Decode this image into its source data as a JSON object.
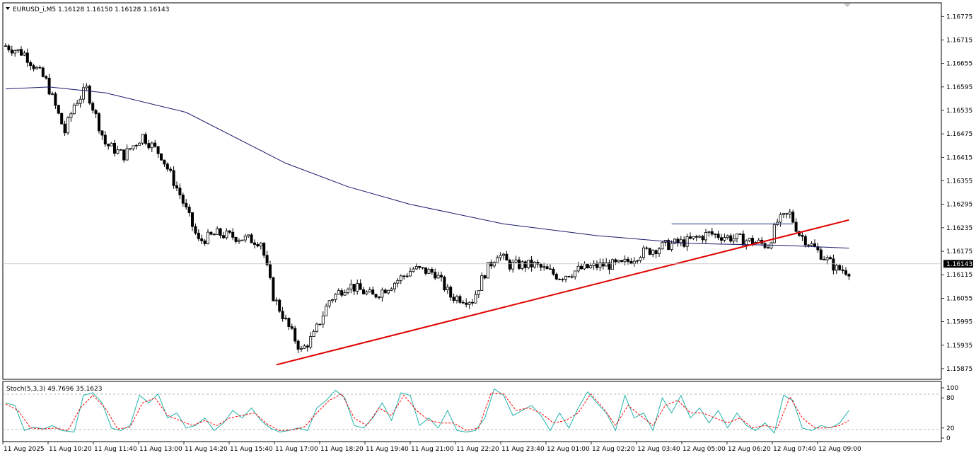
{
  "window": {
    "symbol_header": "EURUSD_i,M5  1.16128 1.16150 1.16128 1.16143",
    "current_price_label": "1.16143"
  },
  "chart_data": [
    {
      "type": "candlestick",
      "title": "EURUSD_i,M5",
      "ohlc_header": {
        "open": 1.16128,
        "high": 1.1615,
        "low": 1.16128,
        "close": 1.16143
      },
      "y_ticks": [
        "1.16775",
        "1.16715",
        "1.16655",
        "1.16595",
        "1.16535",
        "1.16475",
        "1.16415",
        "1.16355",
        "1.16295",
        "1.16235",
        "1.16175",
        "1.16115",
        "1.16055",
        "1.15995",
        "1.15935",
        "1.15875"
      ],
      "ylim": [
        1.15855,
        1.1679
      ],
      "current_price": 1.16143,
      "x_ticks": [
        "11 Aug 2025",
        "11 Aug 10:20",
        "11 Aug 11:40",
        "11 Aug 13:00",
        "11 Aug 14:20",
        "11 Aug 15:40",
        "11 Aug 17:00",
        "11 Aug 18:20",
        "11 Aug 19:40",
        "11 Aug 21:00",
        "11 Aug 22:20",
        "11 Aug 23:40",
        "12 Aug 01:00",
        "12 Aug 02:20",
        "12 Aug 03:40",
        "12 Aug 05:00",
        "12 Aug 06:20",
        "12 Aug 07:40",
        "12 Aug 09:00"
      ],
      "close_path": [
        [
          0,
          1.167
        ],
        [
          6,
          1.1668
        ],
        [
          13,
          1.1661
        ],
        [
          19,
          1.1648
        ],
        [
          22,
          1.1655
        ],
        [
          26,
          1.1659
        ],
        [
          32,
          1.1645
        ],
        [
          38,
          1.1642
        ],
        [
          44,
          1.1647
        ],
        [
          50,
          1.1642
        ],
        [
          56,
          1.1632
        ],
        [
          62,
          1.162
        ],
        [
          68,
          1.1622
        ],
        [
          75,
          1.1621
        ],
        [
          82,
          1.162
        ],
        [
          86,
          1.1606
        ],
        [
          91,
          1.1598
        ],
        [
          95,
          1.1592
        ],
        [
          99,
          1.1596
        ],
        [
          104,
          1.1605
        ],
        [
          110,
          1.1609
        ],
        [
          118,
          1.1606
        ],
        [
          124,
          1.1609
        ],
        [
          131,
          1.1613
        ],
        [
          138,
          1.1612
        ],
        [
          143,
          1.1606
        ],
        [
          150,
          1.1605
        ],
        [
          154,
          1.1612
        ],
        [
          158,
          1.1617
        ],
        [
          162,
          1.1614
        ],
        [
          170,
          1.1614
        ],
        [
          178,
          1.1611
        ],
        [
          185,
          1.1613
        ],
        [
          192,
          1.1614
        ],
        [
          198,
          1.1614
        ],
        [
          204,
          1.1617
        ],
        [
          212,
          1.1619
        ],
        [
          219,
          1.162
        ],
        [
          226,
          1.1622
        ],
        [
          233,
          1.1621
        ],
        [
          240,
          1.162
        ],
        [
          245,
          1.1619
        ],
        [
          248,
          1.1625
        ],
        [
          252,
          1.1627
        ],
        [
          255,
          1.1622
        ],
        [
          259,
          1.1619
        ],
        [
          263,
          1.1616
        ],
        [
          267,
          1.1613
        ],
        [
          271,
          1.16125
        ]
      ],
      "moving_average": [
        [
          0,
          1.1659
        ],
        [
          14,
          1.16595
        ],
        [
          32,
          1.1658
        ],
        [
          58,
          1.1653
        ],
        [
          90,
          1.164
        ],
        [
          110,
          1.1634
        ],
        [
          130,
          1.16295
        ],
        [
          160,
          1.16245
        ],
        [
          190,
          1.16215
        ],
        [
          220,
          1.16195
        ],
        [
          250,
          1.1619
        ],
        [
          271,
          1.16183
        ]
      ],
      "support_trendline": [
        [
          87,
          1.15885
        ],
        [
          271,
          1.16255
        ]
      ],
      "resistance_line": [
        [
          214,
          1.16245
        ],
        [
          253,
          1.16245
        ]
      ]
    },
    {
      "type": "line",
      "title": "Stoch(5,3,3) 49.7696 35.1623",
      "y_ticks": [
        "100",
        "80",
        "20",
        "0"
      ],
      "levels": [
        80,
        20
      ],
      "ylim": [
        0,
        100
      ],
      "series": [
        {
          "name": "main",
          "color": "#20B2AA",
          "points": [
            [
              0,
              70
            ],
            [
              3,
              65
            ],
            [
              6,
              15
            ],
            [
              9,
              22
            ],
            [
              12,
              18
            ],
            [
              15,
              25
            ],
            [
              18,
              15
            ],
            [
              22,
              12
            ],
            [
              25,
              85
            ],
            [
              28,
              90
            ],
            [
              31,
              70
            ],
            [
              34,
              20
            ],
            [
              37,
              15
            ],
            [
              40,
              25
            ],
            [
              43,
              85
            ],
            [
              46,
              70
            ],
            [
              49,
              88
            ],
            [
              52,
              40
            ],
            [
              55,
              50
            ],
            [
              58,
              20
            ],
            [
              61,
              25
            ],
            [
              64,
              40
            ],
            [
              67,
              15
            ],
            [
              70,
              30
            ],
            [
              73,
              55
            ],
            [
              76,
              40
            ],
            [
              79,
              60
            ],
            [
              82,
              35
            ],
            [
              85,
              20
            ],
            [
              88,
              12
            ],
            [
              91,
              15
            ],
            [
              94,
              20
            ],
            [
              97,
              15
            ],
            [
              100,
              60
            ],
            [
              103,
              75
            ],
            [
              106,
              95
            ],
            [
              109,
              80
            ],
            [
              112,
              25
            ],
            [
              115,
              20
            ],
            [
              118,
              40
            ],
            [
              121,
              70
            ],
            [
              124,
              35
            ],
            [
              127,
              90
            ],
            [
              130,
              85
            ],
            [
              133,
              25
            ],
            [
              136,
              40
            ],
            [
              139,
              20
            ],
            [
              142,
              55
            ],
            [
              145,
              15
            ],
            [
              148,
              12
            ],
            [
              151,
              15
            ],
            [
              154,
              40
            ],
            [
              157,
              98
            ],
            [
              160,
              85
            ],
            [
              163,
              45
            ],
            [
              166,
              55
            ],
            [
              169,
              65
            ],
            [
              172,
              45
            ],
            [
              175,
              15
            ],
            [
              178,
              50
            ],
            [
              181,
              20
            ],
            [
              184,
              60
            ],
            [
              187,
              92
            ],
            [
              190,
              70
            ],
            [
              193,
              50
            ],
            [
              196,
              15
            ],
            [
              199,
              85
            ],
            [
              202,
              40
            ],
            [
              205,
              50
            ],
            [
              208,
              15
            ],
            [
              211,
              80
            ],
            [
              214,
              50
            ],
            [
              217,
              85
            ],
            [
              220,
              40
            ],
            [
              223,
              60
            ],
            [
              226,
              30
            ],
            [
              229,
              55
            ],
            [
              232,
              20
            ],
            [
              235,
              50
            ],
            [
              238,
              25
            ],
            [
              241,
              15
            ],
            [
              244,
              30
            ],
            [
              247,
              10
            ],
            [
              250,
              85
            ],
            [
              253,
              75
            ],
            [
              256,
              20
            ],
            [
              259,
              15
            ],
            [
              262,
              25
            ],
            [
              265,
              20
            ],
            [
              268,
              30
            ],
            [
              271,
              55
            ]
          ]
        },
        {
          "name": "signal",
          "color": "#FF0000",
          "points": [
            [
              0,
              68
            ],
            [
              4,
              55
            ],
            [
              8,
              20
            ],
            [
              12,
              18
            ],
            [
              16,
              20
            ],
            [
              20,
              15
            ],
            [
              24,
              60
            ],
            [
              28,
              85
            ],
            [
              32,
              60
            ],
            [
              36,
              18
            ],
            [
              40,
              22
            ],
            [
              44,
              70
            ],
            [
              48,
              80
            ],
            [
              52,
              45
            ],
            [
              56,
              35
            ],
            [
              60,
              25
            ],
            [
              64,
              35
            ],
            [
              68,
              25
            ],
            [
              72,
              40
            ],
            [
              76,
              45
            ],
            [
              80,
              50
            ],
            [
              84,
              28
            ],
            [
              88,
              15
            ],
            [
              92,
              16
            ],
            [
              96,
              22
            ],
            [
              100,
              50
            ],
            [
              104,
              75
            ],
            [
              108,
              88
            ],
            [
              112,
              40
            ],
            [
              116,
              25
            ],
            [
              120,
              60
            ],
            [
              124,
              45
            ],
            [
              128,
              85
            ],
            [
              132,
              55
            ],
            [
              136,
              35
            ],
            [
              140,
              30
            ],
            [
              144,
              30
            ],
            [
              148,
              15
            ],
            [
              152,
              20
            ],
            [
              156,
              90
            ],
            [
              160,
              88
            ],
            [
              164,
              55
            ],
            [
              168,
              60
            ],
            [
              172,
              50
            ],
            [
              176,
              30
            ],
            [
              180,
              35
            ],
            [
              184,
              50
            ],
            [
              188,
              88
            ],
            [
              192,
              60
            ],
            [
              196,
              25
            ],
            [
              200,
              65
            ],
            [
              204,
              45
            ],
            [
              208,
              25
            ],
            [
              212,
              65
            ],
            [
              216,
              75
            ],
            [
              220,
              50
            ],
            [
              224,
              50
            ],
            [
              228,
              40
            ],
            [
              232,
              30
            ],
            [
              236,
              40
            ],
            [
              240,
              20
            ],
            [
              244,
              25
            ],
            [
              248,
              20
            ],
            [
              252,
              82
            ],
            [
              256,
              40
            ],
            [
              260,
              20
            ],
            [
              264,
              20
            ],
            [
              268,
              25
            ],
            [
              271,
              35
            ]
          ]
        }
      ]
    }
  ]
}
